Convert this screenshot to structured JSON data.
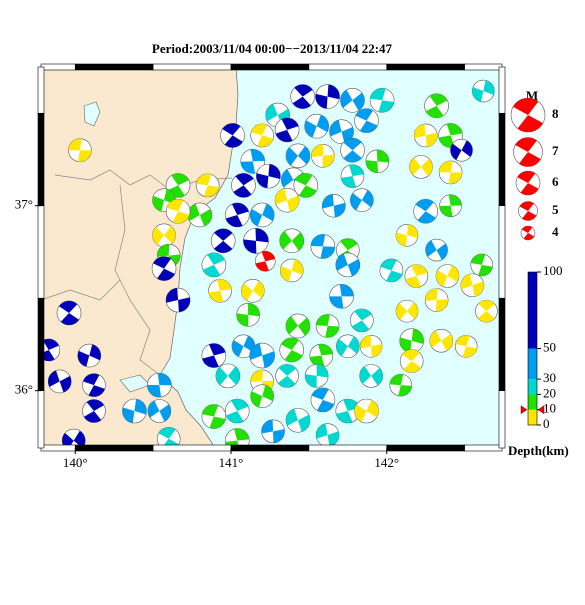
{
  "chart_data": {
    "type": "map",
    "title": "Period:2003/11/04 00:00−−2013/11/04 22:47",
    "xlim": [
      139.78,
      142.74
    ],
    "ylim": [
      35.69,
      37.75
    ],
    "xticks": [
      {
        "value": 140,
        "label": "140°"
      },
      {
        "value": 141,
        "label": "141°"
      },
      {
        "value": 142,
        "label": "142°"
      }
    ],
    "yticks": [
      {
        "value": 36,
        "label": "36°"
      },
      {
        "value": 37,
        "label": "37°"
      }
    ],
    "events": {
      "lon": [
        140.03,
        141.46,
        141.62,
        141.78,
        141.97,
        142.32,
        142.62,
        141.3,
        141.2,
        141.36,
        141.55,
        141.71,
        141.87,
        142.41,
        142.48,
        142.25,
        141.01,
        141.14,
        141.43,
        141.59,
        141.78,
        141.94,
        142.22,
        142.41,
        141.08,
        141.24,
        141.4,
        140.85,
        140.66,
        140.57,
        140.8,
        140.66,
        141.04,
        141.2,
        141.36,
        141.48,
        141.78,
        141.84,
        141.66,
        142.25,
        142.41,
        140.57,
        140.6,
        140.95,
        141.16,
        141.39,
        141.59,
        141.75,
        142.13,
        142.32,
        142.61,
        140.89,
        141.39,
        141.75,
        142.03,
        142.19,
        142.39,
        142.55,
        140.57,
        140.93,
        141.14,
        140.66,
        139.96,
        141.71,
        142.13,
        142.32,
        142.64,
        141.11,
        141.43,
        141.62,
        141.84,
        142.16,
        142.35,
        142.51,
        139.83,
        140.09,
        139.9,
        140.12,
        140.89,
        141.08,
        141.2,
        141.39,
        141.58,
        141.75,
        141.9,
        142.16,
        140.54,
        140.98,
        141.2,
        141.36,
        141.55,
        141.9,
        142.09,
        140.12,
        140.38,
        140.54,
        140.89,
        141.04,
        141.2,
        141.43,
        141.59,
        141.75,
        141.87,
        141.62,
        140.6,
        141.04,
        139.99,
        141.27
      ],
      "lat": [
        37.3,
        37.59,
        37.59,
        37.57,
        37.57,
        37.54,
        37.62,
        37.49,
        37.38,
        37.41,
        37.43,
        37.4,
        37.46,
        37.38,
        37.3,
        37.38,
        37.38,
        37.24,
        37.27,
        37.27,
        37.3,
        37.24,
        37.21,
        37.18,
        37.11,
        37.16,
        37.14,
        37.11,
        37.11,
        37.03,
        36.95,
        36.97,
        36.95,
        36.95,
        37.03,
        37.11,
        37.16,
        37.03,
        37.0,
        36.97,
        37.0,
        36.84,
        36.73,
        36.81,
        36.81,
        36.81,
        36.78,
        36.76,
        36.84,
        36.76,
        36.68,
        36.68,
        36.65,
        36.68,
        36.65,
        36.62,
        36.62,
        36.57,
        36.66,
        36.54,
        36.54,
        36.49,
        36.42,
        36.51,
        36.43,
        36.49,
        36.43,
        36.41,
        36.35,
        36.35,
        36.38,
        36.27,
        36.27,
        36.24,
        36.22,
        36.19,
        36.05,
        36.03,
        36.19,
        36.24,
        36.19,
        36.22,
        36.19,
        36.24,
        36.24,
        36.16,
        36.03,
        36.08,
        36.05,
        36.08,
        36.08,
        36.08,
        36.03,
        35.89,
        35.89,
        35.89,
        35.86,
        35.89,
        35.97,
        35.84,
        35.95,
        35.89,
        35.89,
        35.76,
        35.74,
        35.73,
        35.73,
        35.78
      ],
      "depth": [
        5,
        70,
        70,
        40,
        25,
        15,
        25,
        25,
        5,
        70,
        40,
        40,
        40,
        15,
        70,
        5,
        70,
        40,
        40,
        5,
        40,
        15,
        5,
        5,
        70,
        70,
        40,
        5,
        15,
        15,
        15,
        5,
        70,
        40,
        5,
        15,
        25,
        40,
        40,
        40,
        15,
        5,
        15,
        70,
        70,
        15,
        40,
        15,
        5,
        40,
        15,
        25,
        5,
        40,
        25,
        5,
        5,
        5,
        70,
        5,
        5,
        70,
        70,
        40,
        5,
        5,
        5,
        15,
        15,
        15,
        25,
        15,
        5,
        5,
        70,
        70,
        70,
        70,
        70,
        40,
        40,
        15,
        15,
        25,
        5,
        5,
        40,
        25,
        5,
        25,
        25,
        25,
        15,
        70,
        40,
        40,
        15,
        25,
        15,
        25,
        40,
        25,
        5,
        25,
        25,
        15,
        70,
        40
      ],
      "mag": [
        5.8,
        6,
        6,
        6,
        6,
        6,
        5.6,
        6,
        5.8,
        6,
        6,
        6,
        6,
        6,
        5.6,
        5.8,
        6,
        6,
        6,
        5.8,
        6,
        5.8,
        5.8,
        5.8,
        6,
        6,
        6,
        5.8,
        6,
        5.8,
        6,
        6,
        6,
        6,
        6,
        6,
        5.8,
        5.8,
        5.8,
        6,
        5.6,
        5.8,
        5.8,
        6,
        6.2,
        6,
        6,
        5.8,
        5.6,
        5.6,
        5.6,
        6,
        5.8,
        6,
        5.8,
        5.8,
        5.8,
        5.8,
        6,
        5.8,
        5.8,
        6,
        6,
        6,
        5.6,
        5.8,
        5.6,
        5.8,
        6,
        5.8,
        5.8,
        6,
        5.8,
        5.6,
        5.6,
        5.8,
        5.8,
        5.8,
        6,
        5.8,
        6.2,
        6,
        5.8,
        5.8,
        5.6,
        5.8,
        6,
        6,
        5.8,
        5.8,
        5.8,
        5.8,
        5.6,
        5.8,
        6,
        5.8,
        6,
        6,
        5.8,
        6,
        6,
        6,
        6,
        5.8,
        5.8,
        6,
        5.8,
        5.8
      ]
    },
    "main_event": {
      "lon": 141.22,
      "lat": 36.7,
      "depth": 10,
      "mag": 5.2,
      "color": "#ff0000"
    },
    "magnitude_legend": {
      "title": "M",
      "values": [
        8,
        7,
        6,
        5,
        4
      ],
      "color": "#ff0000"
    },
    "depth_scale": {
      "label": "Depth(km)",
      "lim": [
        0,
        100
      ],
      "ticks": [
        0,
        10,
        20,
        30,
        50,
        100
      ],
      "colors": [
        "#ffe600",
        "#22e000",
        "#00d8d0",
        "#009cf0",
        "#0000b8"
      ]
    }
  }
}
